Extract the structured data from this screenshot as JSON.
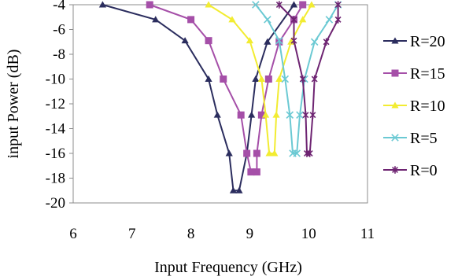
{
  "chart_data": {
    "type": "line",
    "xlabel": "Input Frequency (GHz)",
    "ylabel": "input Power (dB)",
    "xlim": [
      6,
      11
    ],
    "ylim": [
      -20,
      -4
    ],
    "x_ticks": [
      "6",
      "7",
      "8",
      "9",
      "10",
      "11"
    ],
    "y_ticks": [
      "-4",
      "-6",
      "-8",
      "-10",
      "-12",
      "-14",
      "-16",
      "-18",
      "-20"
    ],
    "grid": false,
    "legend_position": "right",
    "series": [
      {
        "name": "R=20",
        "color": "#2b2d5e",
        "marker": "triangle",
        "points": [
          [
            6.5,
            -4
          ],
          [
            7.4,
            -5.2
          ],
          [
            7.9,
            -6.9
          ],
          [
            8.3,
            -10
          ],
          [
            8.45,
            -12.9
          ],
          [
            8.65,
            -16
          ],
          [
            8.72,
            -19
          ],
          [
            8.82,
            -19
          ],
          [
            8.95,
            -16
          ],
          [
            9.03,
            -12.9
          ],
          [
            9.1,
            -10
          ],
          [
            9.3,
            -7
          ],
          [
            9.75,
            -4
          ]
        ]
      },
      {
        "name": "R=15",
        "color": "#a54fa8",
        "marker": "square",
        "points": [
          [
            7.3,
            -4
          ],
          [
            8.0,
            -5.2
          ],
          [
            8.3,
            -6.9
          ],
          [
            8.55,
            -10
          ],
          [
            8.85,
            -12.9
          ],
          [
            8.95,
            -16
          ],
          [
            9.02,
            -17.5
          ],
          [
            9.12,
            -17.5
          ],
          [
            9.12,
            -16
          ],
          [
            9.2,
            -12.9
          ],
          [
            9.32,
            -10
          ],
          [
            9.5,
            -7
          ],
          [
            9.75,
            -5.2
          ],
          [
            9.9,
            -4
          ]
        ]
      },
      {
        "name": "R=10",
        "color": "#f2ec31",
        "marker": "triangle",
        "points": [
          [
            8.3,
            -4
          ],
          [
            8.7,
            -5.2
          ],
          [
            9.0,
            -6.9
          ],
          [
            9.2,
            -10
          ],
          [
            9.27,
            -12.9
          ],
          [
            9.33,
            -16
          ],
          [
            9.42,
            -16
          ],
          [
            9.45,
            -12.9
          ],
          [
            9.5,
            -10
          ],
          [
            9.7,
            -7
          ],
          [
            9.9,
            -5.2
          ],
          [
            10.05,
            -4
          ]
        ]
      },
      {
        "name": "R=5",
        "color": "#6bc9d3",
        "marker": "x",
        "points": [
          [
            9.1,
            -4
          ],
          [
            9.3,
            -5.2
          ],
          [
            9.5,
            -6.9
          ],
          [
            9.6,
            -10
          ],
          [
            9.68,
            -12.9
          ],
          [
            9.73,
            -16
          ],
          [
            9.8,
            -16
          ],
          [
            9.85,
            -12.9
          ],
          [
            9.93,
            -10
          ],
          [
            10.1,
            -7
          ],
          [
            10.35,
            -5.2
          ],
          [
            10.5,
            -4
          ]
        ]
      },
      {
        "name": "R=0",
        "color": "#6e2472",
        "marker": "star",
        "points": [
          [
            9.5,
            -4
          ],
          [
            9.75,
            -5.2
          ],
          [
            9.75,
            -6.9
          ],
          [
            9.9,
            -10
          ],
          [
            9.95,
            -12.9
          ],
          [
            9.97,
            -16
          ],
          [
            10.02,
            -16
          ],
          [
            10.07,
            -12.9
          ],
          [
            10.1,
            -10
          ],
          [
            10.3,
            -7
          ],
          [
            10.5,
            -5.2
          ],
          [
            10.5,
            -4
          ]
        ]
      }
    ]
  }
}
